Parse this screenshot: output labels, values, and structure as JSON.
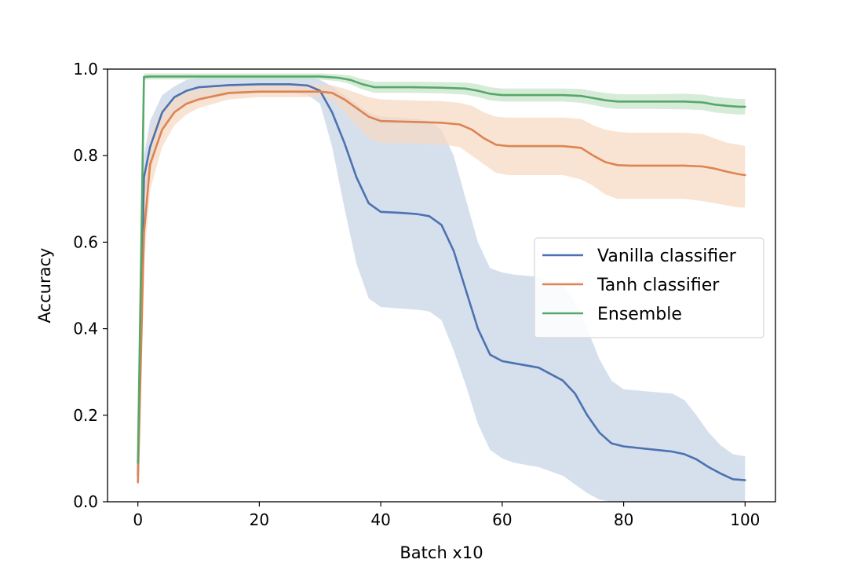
{
  "chart_data": {
    "type": "line",
    "title": "",
    "xlabel": "Batch x10",
    "ylabel": "Accuracy",
    "xlim": [
      -5,
      105
    ],
    "ylim": [
      0.0,
      1.0
    ],
    "xticks": [
      0,
      20,
      40,
      60,
      80,
      100
    ],
    "xtick_labels": [
      "0",
      "20",
      "40",
      "60",
      "80",
      "100"
    ],
    "yticks": [
      0.0,
      0.2,
      0.4,
      0.6,
      0.8,
      1.0
    ],
    "ytick_labels": [
      "0.0",
      "0.2",
      "0.4",
      "0.6",
      "0.8",
      "1.0"
    ],
    "grid": false,
    "legend_position": "center-right",
    "series": [
      {
        "name": "Vanilla classifier",
        "color": "#4c72b0",
        "band_color": "#c4d3e6",
        "x": [
          0,
          1,
          2,
          4,
          6,
          8,
          10,
          15,
          20,
          25,
          28,
          30,
          32,
          34,
          36,
          38,
          40,
          43,
          46,
          48,
          50,
          52,
          54,
          56,
          58,
          60,
          62,
          66,
          70,
          72,
          74,
          76,
          78,
          80,
          84,
          88,
          90,
          92,
          94,
          96,
          98,
          100
        ],
        "y": [
          0.06,
          0.75,
          0.82,
          0.9,
          0.935,
          0.95,
          0.958,
          0.963,
          0.965,
          0.965,
          0.962,
          0.95,
          0.9,
          0.83,
          0.75,
          0.69,
          0.67,
          0.668,
          0.665,
          0.66,
          0.64,
          0.58,
          0.49,
          0.4,
          0.34,
          0.325,
          0.32,
          0.31,
          0.28,
          0.25,
          0.2,
          0.16,
          0.135,
          0.128,
          0.122,
          0.116,
          0.11,
          0.098,
          0.08,
          0.065,
          0.052,
          0.05
        ],
        "lower": [
          0.03,
          0.7,
          0.76,
          0.86,
          0.9,
          0.92,
          0.93,
          0.94,
          0.945,
          0.945,
          0.94,
          0.92,
          0.82,
          0.68,
          0.55,
          0.47,
          0.45,
          0.447,
          0.444,
          0.44,
          0.42,
          0.35,
          0.27,
          0.18,
          0.12,
          0.1,
          0.09,
          0.08,
          0.06,
          0.04,
          0.02,
          0.005,
          0.0,
          0.0,
          0.0,
          0.0,
          0.0,
          0.0,
          0.0,
          0.0,
          0.0,
          0.0
        ],
        "upper": [
          0.09,
          0.8,
          0.88,
          0.94,
          0.96,
          0.975,
          0.98,
          0.985,
          0.985,
          0.985,
          0.983,
          0.975,
          0.96,
          0.94,
          0.92,
          0.9,
          0.89,
          0.888,
          0.885,
          0.88,
          0.86,
          0.8,
          0.7,
          0.6,
          0.54,
          0.53,
          0.525,
          0.52,
          0.5,
          0.46,
          0.4,
          0.33,
          0.28,
          0.26,
          0.255,
          0.25,
          0.235,
          0.2,
          0.16,
          0.13,
          0.11,
          0.105
        ]
      },
      {
        "name": "Tanh classifier",
        "color": "#dd8452",
        "band_color": "#f7d8c2",
        "x": [
          0,
          1,
          2,
          4,
          6,
          8,
          10,
          15,
          20,
          25,
          30,
          32,
          34,
          36,
          38,
          40,
          45,
          50,
          53,
          55,
          57,
          59,
          61,
          65,
          70,
          73,
          75,
          77,
          79,
          81,
          85,
          90,
          93,
          95,
          97,
          99,
          100
        ],
        "y": [
          0.045,
          0.62,
          0.78,
          0.86,
          0.9,
          0.92,
          0.93,
          0.945,
          0.948,
          0.948,
          0.948,
          0.945,
          0.93,
          0.91,
          0.89,
          0.88,
          0.878,
          0.876,
          0.872,
          0.86,
          0.84,
          0.825,
          0.822,
          0.822,
          0.822,
          0.818,
          0.8,
          0.785,
          0.778,
          0.777,
          0.777,
          0.777,
          0.775,
          0.77,
          0.763,
          0.757,
          0.755
        ],
        "lower": [
          0.03,
          0.55,
          0.72,
          0.82,
          0.87,
          0.895,
          0.91,
          0.93,
          0.935,
          0.935,
          0.935,
          0.93,
          0.9,
          0.87,
          0.84,
          0.83,
          0.828,
          0.826,
          0.82,
          0.8,
          0.78,
          0.76,
          0.755,
          0.755,
          0.755,
          0.745,
          0.73,
          0.71,
          0.7,
          0.7,
          0.7,
          0.7,
          0.695,
          0.69,
          0.685,
          0.68,
          0.68
        ],
        "upper": [
          0.06,
          0.72,
          0.85,
          0.91,
          0.935,
          0.95,
          0.96,
          0.965,
          0.965,
          0.965,
          0.965,
          0.962,
          0.955,
          0.945,
          0.935,
          0.93,
          0.928,
          0.926,
          0.922,
          0.915,
          0.9,
          0.89,
          0.888,
          0.888,
          0.888,
          0.885,
          0.87,
          0.86,
          0.855,
          0.853,
          0.853,
          0.853,
          0.85,
          0.84,
          0.83,
          0.825,
          0.822
        ]
      },
      {
        "name": "Ensemble",
        "color": "#55a868",
        "band_color": "#c5e3c7",
        "x": [
          0,
          1,
          2,
          5,
          10,
          20,
          30,
          33,
          35,
          37,
          39,
          41,
          45,
          50,
          54,
          56,
          58,
          60,
          65,
          70,
          73,
          75,
          77,
          79,
          81,
          85,
          90,
          93,
          95,
          97,
          99,
          100
        ],
        "y": [
          0.09,
          0.982,
          0.983,
          0.983,
          0.983,
          0.983,
          0.983,
          0.98,
          0.975,
          0.965,
          0.958,
          0.958,
          0.958,
          0.957,
          0.955,
          0.95,
          0.943,
          0.94,
          0.94,
          0.94,
          0.938,
          0.933,
          0.928,
          0.925,
          0.925,
          0.925,
          0.925,
          0.923,
          0.918,
          0.915,
          0.913,
          0.913
        ],
        "lower": [
          0.07,
          0.975,
          0.976,
          0.976,
          0.976,
          0.976,
          0.976,
          0.972,
          0.965,
          0.953,
          0.945,
          0.945,
          0.945,
          0.944,
          0.941,
          0.935,
          0.928,
          0.925,
          0.925,
          0.925,
          0.922,
          0.917,
          0.911,
          0.908,
          0.908,
          0.908,
          0.907,
          0.905,
          0.9,
          0.897,
          0.895,
          0.895
        ],
        "upper": [
          0.11,
          0.99,
          0.99,
          0.99,
          0.99,
          0.99,
          0.99,
          0.988,
          0.985,
          0.977,
          0.971,
          0.971,
          0.971,
          0.97,
          0.969,
          0.965,
          0.958,
          0.955,
          0.955,
          0.955,
          0.954,
          0.949,
          0.945,
          0.942,
          0.942,
          0.942,
          0.943,
          0.941,
          0.936,
          0.933,
          0.931,
          0.931
        ]
      }
    ]
  }
}
